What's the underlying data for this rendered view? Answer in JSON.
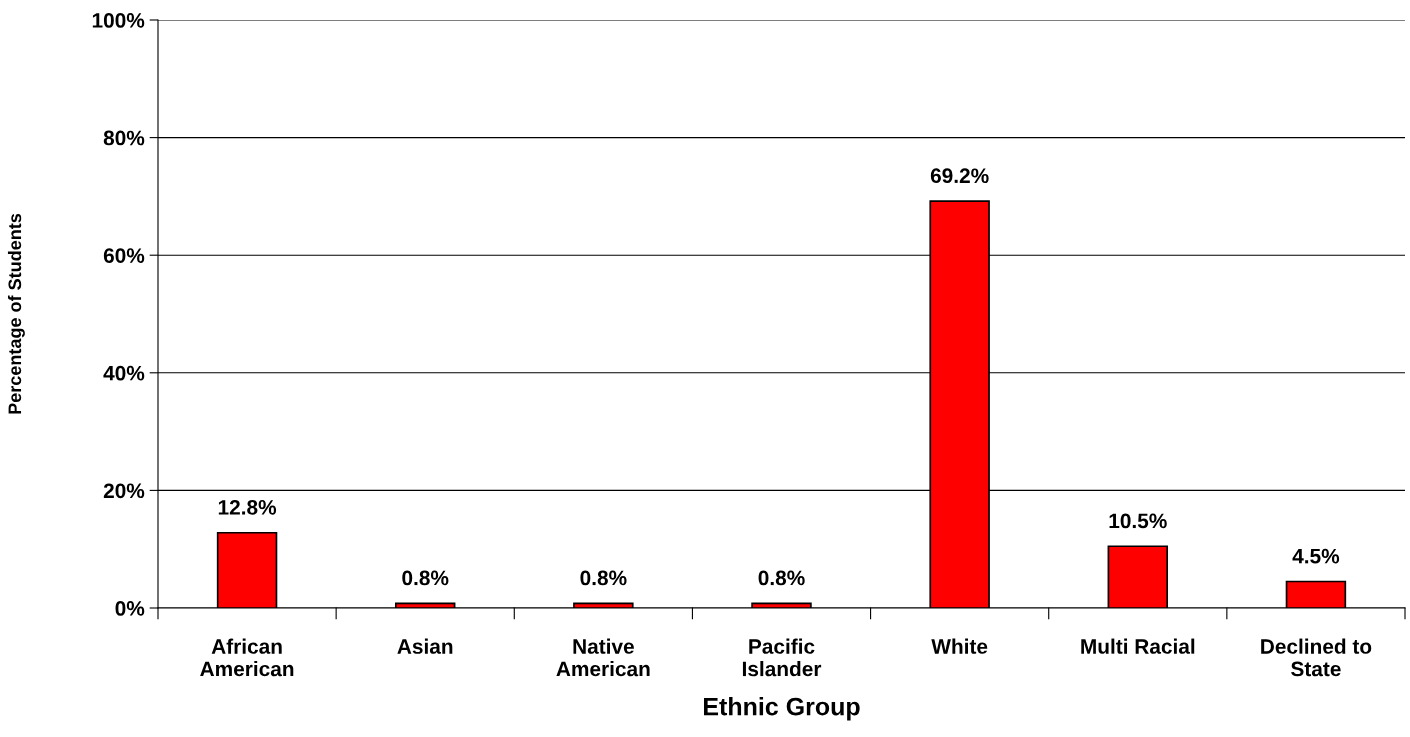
{
  "chart_data": {
    "type": "bar",
    "xlabel": "Ethnic Group",
    "ylabel": "Percentage of Students",
    "categories": [
      "African\nAmerican",
      "Asian",
      "Native\nAmerican",
      "Pacific\nIslander",
      "White",
      "Multi Racial",
      "Declined to\nState"
    ],
    "values": [
      12.8,
      0.8,
      0.8,
      0.8,
      69.2,
      10.5,
      4.5
    ],
    "color": "#ff0000",
    "value_labels": [
      "12.8%",
      "0.8%",
      "0.8%",
      "0.8%",
      "69.2%",
      "10.5%",
      "4.5%"
    ],
    "ylim": [
      0,
      100
    ],
    "yticks": [
      {
        "value": 0,
        "label": "0%"
      },
      {
        "value": 20,
        "label": "20%"
      },
      {
        "value": 40,
        "label": "40%"
      },
      {
        "value": 60,
        "label": "60%"
      },
      {
        "value": 80,
        "label": "80%"
      },
      {
        "value": 100,
        "label": "100%"
      }
    ],
    "grid": "y",
    "legend": false
  }
}
